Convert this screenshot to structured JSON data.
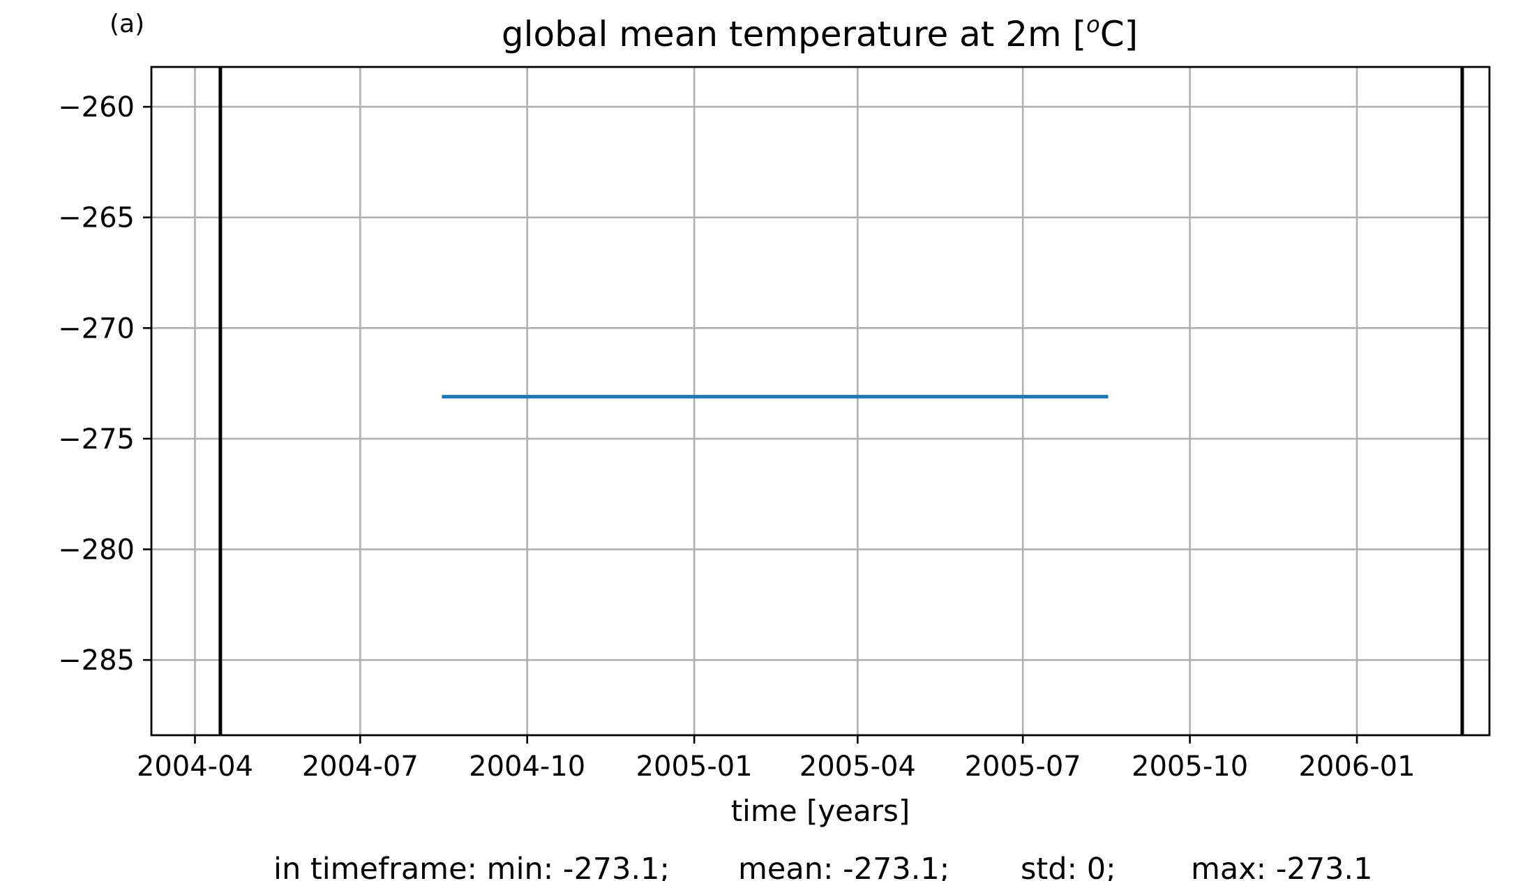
{
  "chart_data": {
    "type": "line",
    "panel_label": "(a)",
    "title": "global mean temperature at 2m [",
    "title_superscript": "o",
    "title_suffix": "C]",
    "xlabel": "time [years]",
    "ylabel": "",
    "x_type": "date",
    "xlim": [
      "2004-03-08",
      "2006-03-15"
    ],
    "ylim": [
      -288.4,
      -258.2
    ],
    "grid": true,
    "x_ticks": [
      "2004-04",
      "2004-07",
      "2004-10",
      "2005-01",
      "2005-04",
      "2005-07",
      "2005-10",
      "2006-01"
    ],
    "y_ticks": [
      -260,
      -265,
      -270,
      -275,
      -280,
      -285
    ],
    "y_tick_labels": [
      "−260",
      "−265",
      "−270",
      "−275",
      "−280",
      "−285"
    ],
    "series": [
      {
        "color": "#1f77b4",
        "x": [
          "2004-08-16",
          "2005-08-16"
        ],
        "y": [
          -273.1,
          -273.1
        ]
      }
    ],
    "vertical_lines": [
      {
        "x": "2004-04-15",
        "color": "#000000"
      },
      {
        "x": "2006-02-28",
        "color": "#000000"
      }
    ],
    "stats": {
      "min_text": "in timeframe: min: -273.1;",
      "mean_text": "mean: -273.1;",
      "std_text": "std: 0;",
      "max_text": "max: -273.1"
    }
  }
}
